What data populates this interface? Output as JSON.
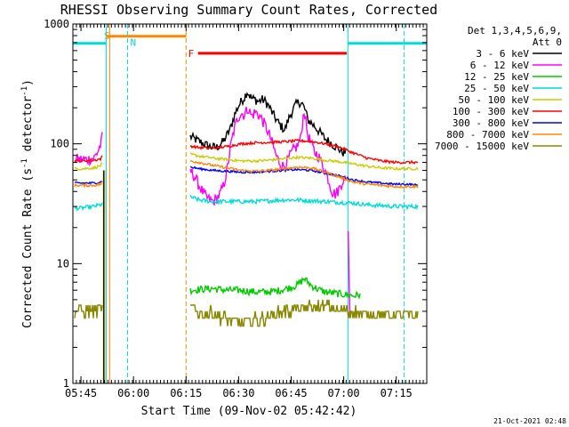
{
  "chart_data": {
    "type": "line",
    "title": "RHESSI Observing Summary Count Rates, Corrected",
    "xlabel": "Start Time (09-Nov-02 05:42:42)",
    "ylabel": "Corrected Count Rate (s⁻¹ detector⁻¹)",
    "ylabel_main": "Corrected Count Rate (s",
    "ylabel_sup1": "-1",
    "ylabel_mid": " detector",
    "ylabel_sup2": "-1",
    "ylabel_end": ")",
    "x_unit": "minutes after 05:42:42",
    "xlim": [
      0,
      101
    ],
    "ylim": [
      1,
      1000
    ],
    "yscale": "log",
    "x_ticks": [
      {
        "label": "05:45",
        "value": 2.3
      },
      {
        "label": "06:00",
        "value": 17.3
      },
      {
        "label": "06:15",
        "value": 32.3
      },
      {
        "label": "06:30",
        "value": 47.3
      },
      {
        "label": "06:45",
        "value": 62.3
      },
      {
        "label": "07:00",
        "value": 77.3
      },
      {
        "label": "07:15",
        "value": 92.3
      }
    ],
    "y_ticks": [
      {
        "label": "1",
        "value": 1
      },
      {
        "label": "10",
        "value": 10
      },
      {
        "label": "100",
        "value": 100
      },
      {
        "label": "1000",
        "value": 1000
      }
    ],
    "legend": {
      "placement": "right",
      "header": [
        "Det 1,3,4,5,6,9,",
        "Att 0"
      ],
      "entries": [
        {
          "label": "3 - 6 keV",
          "color": "#000000"
        },
        {
          "label": "6 - 12 keV",
          "color": "#ff00ff"
        },
        {
          "label": "12 - 25 keV",
          "color": "#00cc00"
        },
        {
          "label": "25 - 50 keV",
          "color": "#00dddd"
        },
        {
          "label": "50 - 100 keV",
          "color": "#cccc00"
        },
        {
          "label": "100 - 300 keV",
          "color": "#ff0000"
        },
        {
          "label": "300 - 800 keV",
          "color": "#0000ff"
        },
        {
          "label": "800 - 7000 keV",
          "color": "#ff8800"
        },
        {
          "label": "7000 - 15000 keV",
          "color": "#888800"
        }
      ]
    },
    "night_intervals": [
      [
        0,
        9.5
      ],
      [
        78.5,
        101
      ]
    ],
    "night_color": "#00dddd",
    "saa_interval": [
      9.6,
      32.3
    ],
    "saa_label": "S",
    "saa_color": "#ff8800",
    "night_label": "N",
    "flare_interval": [
      35.7,
      78.2
    ],
    "flare_label": "F",
    "flare_color": "#ff0000",
    "vertical_lines": [
      {
        "x": 9.5,
        "color": "#00dddd",
        "style": "solid"
      },
      {
        "x": 10.5,
        "color": "#ff8800",
        "style": "solid"
      },
      {
        "x": 15.6,
        "color": "#00dddd",
        "style": "dashed"
      },
      {
        "x": 32.3,
        "color": "#ff8800",
        "style": "dashed"
      },
      {
        "x": 78.5,
        "color": "#00dddd",
        "style": "solid"
      },
      {
        "x": 94.5,
        "color": "#00dddd",
        "style": "dashed"
      }
    ],
    "series": [
      {
        "name": "3 - 6 keV",
        "color": "#000000",
        "noise": 0.09,
        "segments": [
          {
            "x": [
              33.5,
              36,
              39,
              41,
              43,
              45,
              46,
              47,
              48,
              49,
              49.7,
              51,
              52,
              53,
              54,
              55,
              56,
              57,
              58,
              59,
              60.5,
              61.5,
              62.5,
              63.5,
              64.5,
              65.5,
              66.5,
              67,
              68,
              69,
              70,
              71,
              72,
              73,
              74,
              75,
              76,
              77,
              78
            ],
            "y": [
              115,
              105,
              95,
              93,
              105,
              135,
              170,
              200,
              225,
              245,
              275,
              240,
              235,
              225,
              235,
              225,
              205,
              180,
              160,
              145,
              130,
              160,
              185,
              210,
              225,
              215,
              185,
              160,
              150,
              140,
              130,
              120,
              110,
              105,
              100,
              95,
              90,
              85,
              85
            ]
          }
        ]
      },
      {
        "name": "6 - 12 keV",
        "color": "#ff00ff",
        "noise": 0.11,
        "segments": [
          {
            "x": [
              0.5,
              2,
              4,
              6,
              7,
              8,
              8.5
            ],
            "y": [
              75,
              74,
              74,
              76,
              85,
              100,
              120
            ]
          },
          {
            "x": [
              33.5,
              35,
              36,
              37,
              38,
              39,
              40,
              41,
              42,
              43,
              44,
              45,
              46,
              47,
              48,
              49,
              50,
              51,
              52,
              53,
              54,
              55,
              56,
              57,
              58,
              59,
              60,
              61,
              62,
              63,
              64,
              65,
              66,
              67,
              68,
              69,
              70,
              71,
              72,
              73,
              74,
              75,
              76,
              77,
              78
            ],
            "y": [
              60,
              52,
              45,
              40,
              36,
              34,
              33,
              35,
              38,
              45,
              60,
              95,
              130,
              165,
              180,
              175,
              200,
              170,
              185,
              175,
              160,
              140,
              120,
              100,
              80,
              70,
              65,
              70,
              80,
              90,
              95,
              110,
              195,
              120,
              100,
              85,
              80,
              70,
              60,
              50,
              40,
              38,
              42,
              50,
              50
            ]
          },
          {
            "x": [
              78.6,
              78.8,
              79.2
            ],
            "y": [
              20,
              8,
              3
            ]
          }
        ]
      },
      {
        "name": "12 - 25 keV",
        "color": "#00cc00",
        "noise": 0.07,
        "segments": [
          {
            "x": [
              33.5,
              36,
              40,
              44,
              48,
              52,
              55,
              58,
              61,
              64,
              66,
              68,
              70,
              72,
              74,
              76,
              78,
              80,
              82
            ],
            "y": [
              6,
              6.1,
              6.2,
              6,
              6,
              5.8,
              5.8,
              5.9,
              6.2,
              6.6,
              7.5,
              6.6,
              6.1,
              5.8,
              5.7,
              5.6,
              5.5,
              5.4,
              5.5
            ]
          }
        ]
      },
      {
        "name": "25 - 50 keV",
        "color": "#00dddd",
        "noise": 0.04,
        "segments": [
          {
            "x": [
              0.5,
              2,
              4,
              6,
              8,
              8.5
            ],
            "y": [
              29,
              29,
              29.5,
              30,
              31,
              32
            ]
          },
          {
            "x": [
              33.5,
              36,
              40,
              44,
              48,
              52,
              56,
              60,
              64,
              68,
              72,
              76,
              80,
              84,
              88,
              92,
              96,
              98.5
            ],
            "y": [
              36,
              34,
              33,
              33,
              33,
              33,
              33.5,
              34,
              34,
              33.5,
              33,
              32.5,
              32,
              31,
              30.5,
              30,
              30,
              30
            ]
          }
        ]
      },
      {
        "name": "50 - 100 keV",
        "color": "#cccc00",
        "noise": 0.025,
        "segments": [
          {
            "x": [
              0.5,
              3,
              6,
              8,
              8.5
            ],
            "y": [
              62,
              62,
              63,
              66,
              70
            ]
          },
          {
            "x": [
              33.5,
              36,
              40,
              44,
              48,
              52,
              56,
              60,
              64,
              68,
              72,
              76,
              80,
              84,
              88,
              92,
              96,
              98.5
            ],
            "y": [
              82,
              79,
              76,
              74,
              72,
              72,
              73,
              75,
              77,
              76,
              73,
              71,
              68,
              65,
              63,
              62,
              62,
              62
            ]
          }
        ]
      },
      {
        "name": "100 - 300 keV",
        "color": "#ff0000",
        "noise": 0.025,
        "segments": [
          {
            "x": [
              0.5,
              3,
              6,
              8,
              8.5
            ],
            "y": [
              72,
              72,
              73,
              75,
              80
            ]
          },
          {
            "x": [
              33.5,
              36,
              40,
              44,
              48,
              52,
              56,
              60,
              64,
              68,
              72,
              76,
              80,
              84,
              88,
              92,
              96,
              98.5
            ],
            "y": [
              96,
              93,
              92,
              95,
              100,
              102,
              103,
              104,
              106,
              105,
              100,
              94,
              84,
              76,
              72,
              70,
              70,
              70
            ]
          }
        ]
      },
      {
        "name": "300 - 800 keV",
        "color": "#0000ff",
        "noise": 0.02,
        "segments": [
          {
            "x": [
              0.5,
              3,
              6,
              8,
              8.5
            ],
            "y": [
              47,
              47,
              47,
              48,
              50
            ]
          },
          {
            "x": [
              33.5,
              36,
              40,
              44,
              48,
              52,
              56,
              60,
              64,
              68,
              72,
              76,
              80,
              84,
              88,
              92,
              96,
              98.5
            ],
            "y": [
              64,
              62,
              60,
              59,
              58,
              58,
              59,
              60,
              61,
              60,
              57,
              54,
              50,
              48,
              47,
              46,
              46,
              45
            ]
          }
        ]
      },
      {
        "name": "800 - 7000 keV",
        "color": "#ff8800",
        "noise": 0.025,
        "segments": [
          {
            "x": [
              0.5,
              3,
              6,
              8,
              8.5
            ],
            "y": [
              45,
              45,
              45,
              46,
              48
            ]
          },
          {
            "x": [
              33.5,
              36,
              40,
              44,
              48,
              52,
              56,
              60,
              64,
              68,
              72,
              76,
              80,
              84,
              88,
              92,
              96,
              98.5
            ],
            "y": [
              72,
              70,
              66,
              63,
              60,
              59,
              60,
              62,
              64,
              63,
              58,
              53,
              48,
              46,
              45,
              44,
              44,
              44
            ]
          }
        ]
      },
      {
        "name": "7000 - 15000 keV",
        "color": "#888800",
        "noise": 0.12,
        "segments": [
          {
            "x": [
              0.5,
              3,
              6,
              8,
              8.5
            ],
            "y": [
              4,
              4,
              4,
              4.2,
              4.5
            ]
          },
          {
            "x": [
              33.5,
              36,
              40,
              44,
              48,
              52,
              56,
              60,
              64,
              68,
              72,
              76,
              80,
              84,
              88,
              92,
              96,
              98.5
            ],
            "y": [
              4.3,
              3.9,
              3.8,
              3.5,
              3.2,
              3.4,
              3.6,
              4,
              4.2,
              4.3,
              4.4,
              4.1,
              3.9,
              3.8,
              3.7,
              3.7,
              3.7,
              3.7
            ]
          }
        ]
      }
    ]
  },
  "footer": {
    "timestamp": "21-Oct-2021 02:48"
  }
}
